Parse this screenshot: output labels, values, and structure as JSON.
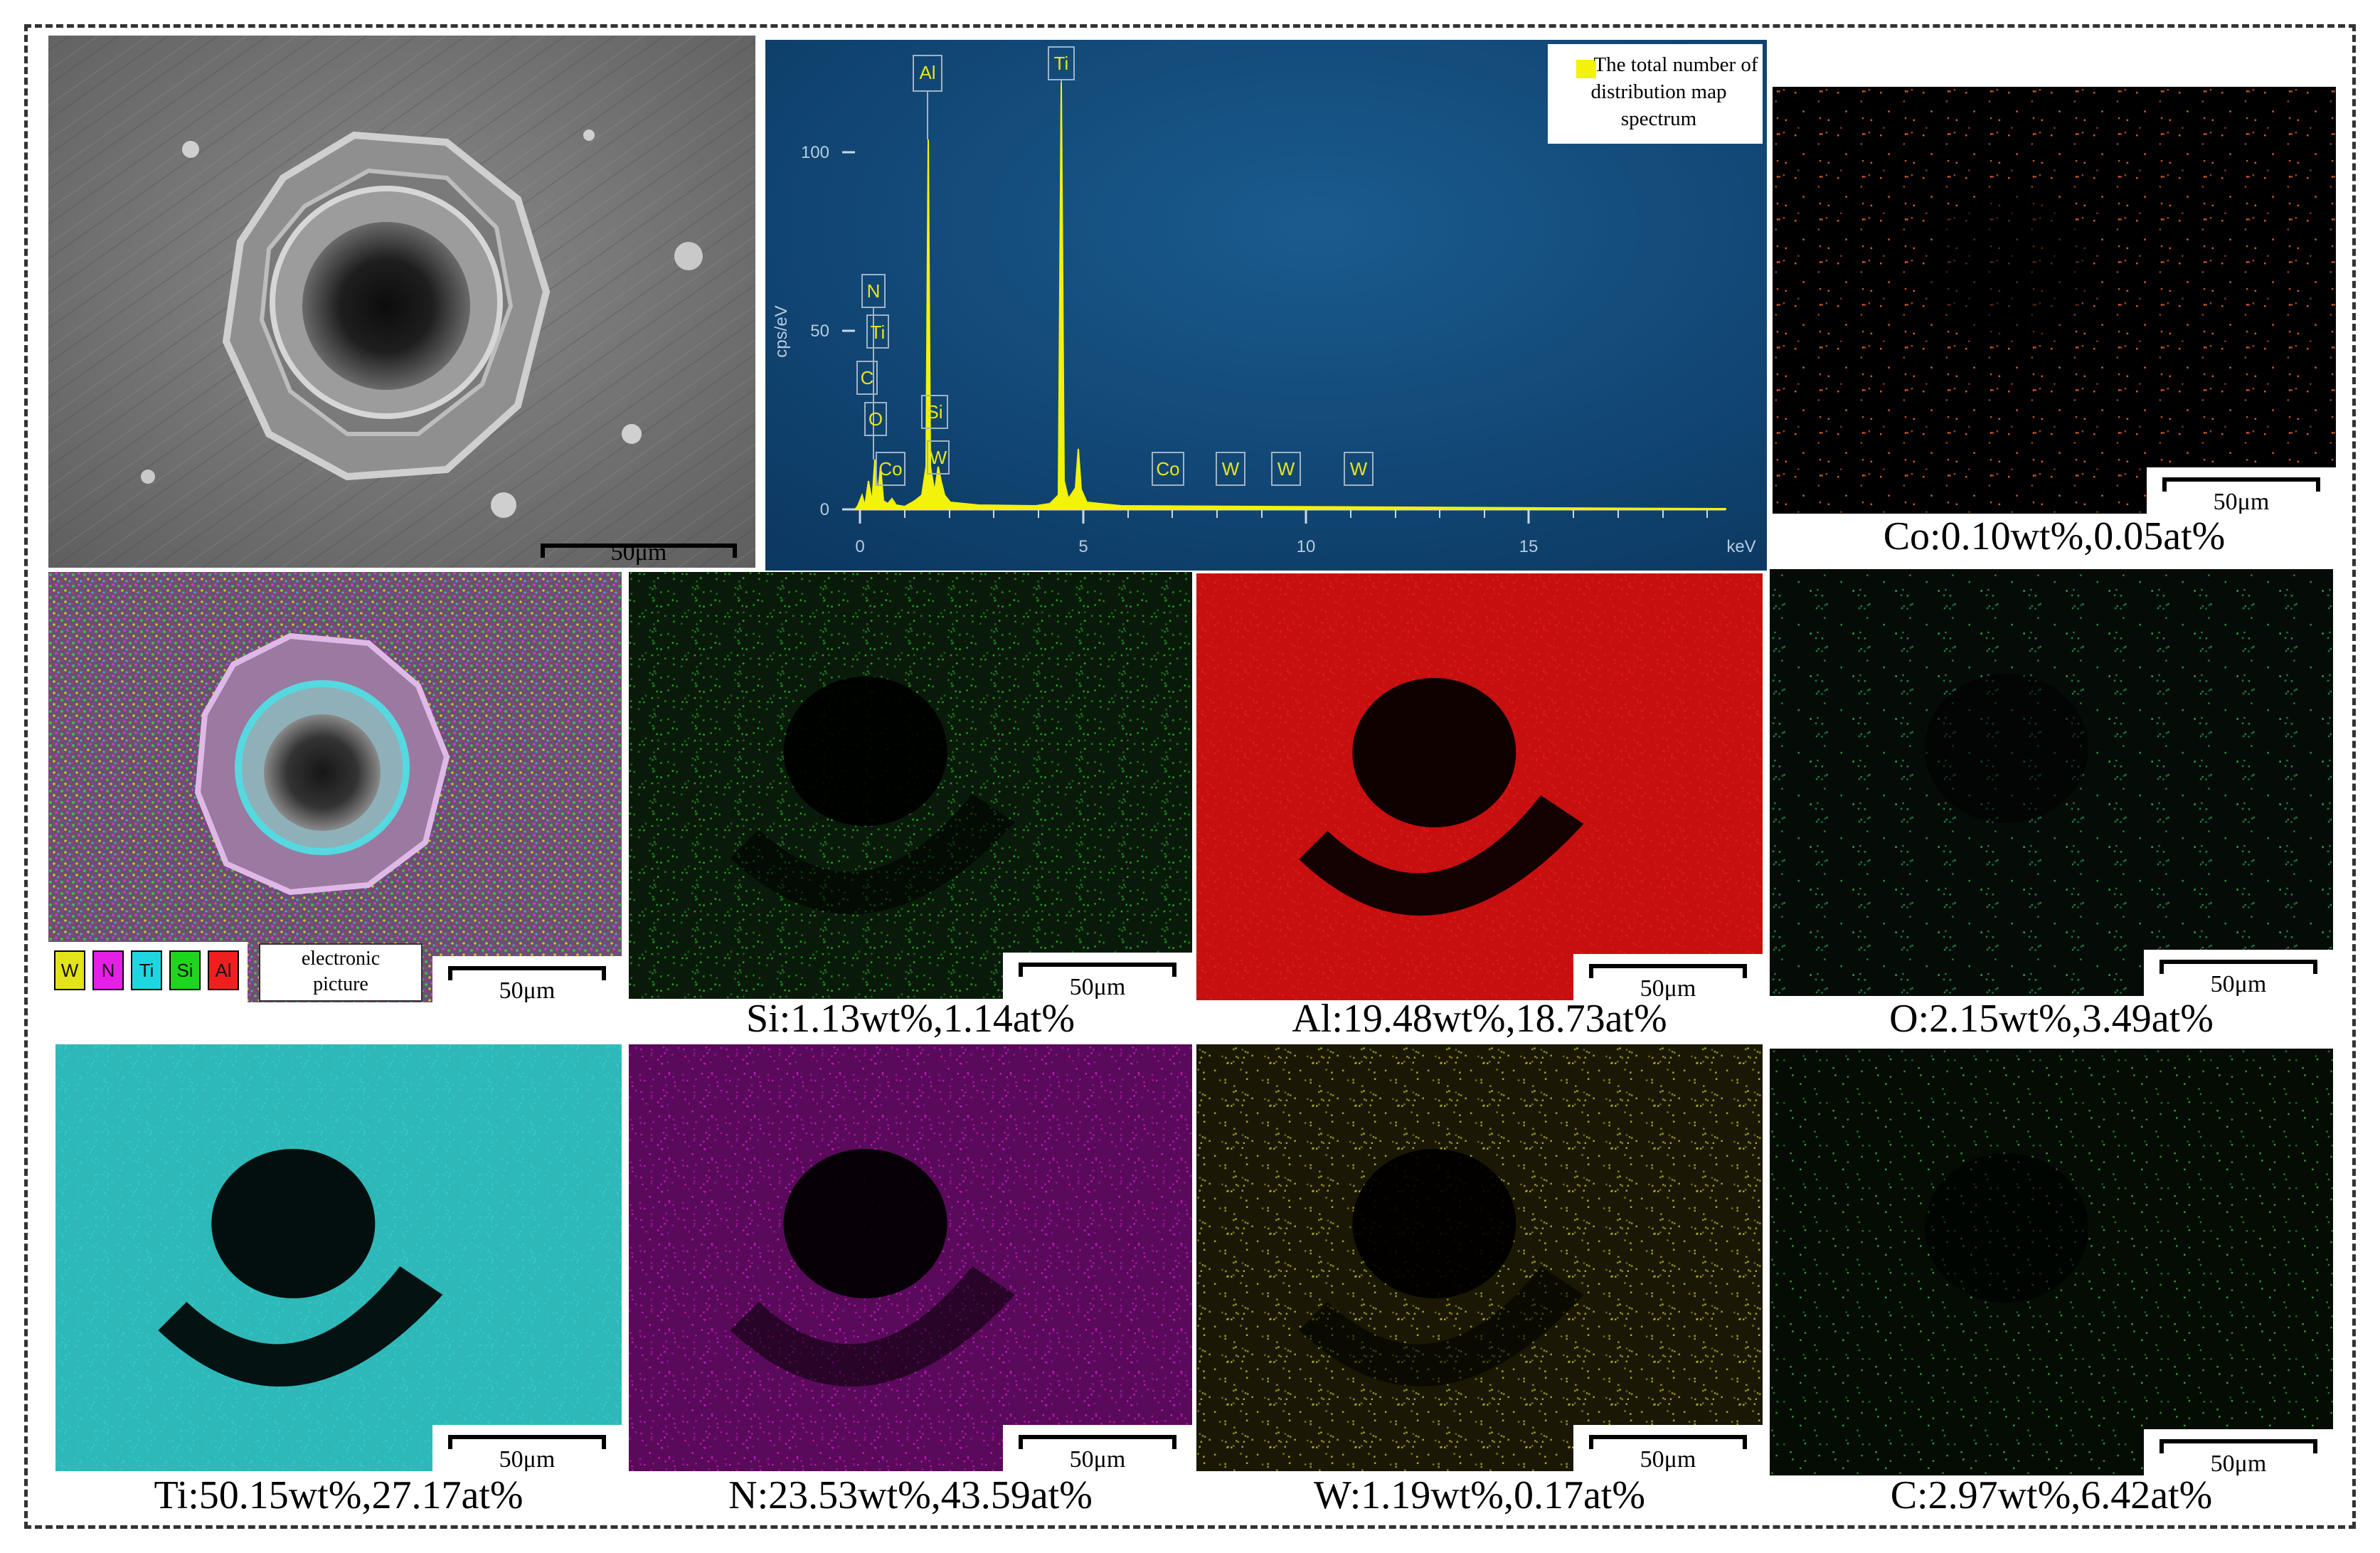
{
  "scale_bar_label": "50μm",
  "spectrum": {
    "legend_text": "The total number of distribution map spectrum",
    "y_axis_label": "cps/eV",
    "x_axis_unit": "keV",
    "y_ticks": [
      "100",
      "50",
      "0"
    ],
    "x_ticks": [
      "0",
      "5",
      "10",
      "15"
    ],
    "peak_labels": [
      "Al",
      "Ti",
      "N",
      "Ti",
      "C",
      "O",
      "Co",
      "Si",
      "W",
      "Co",
      "W",
      "W",
      "W"
    ],
    "colors": {
      "background": "#0f4270",
      "spectrum": "#f2f20a"
    }
  },
  "composite": {
    "legend": [
      {
        "symbol": "W",
        "color": "#e3e31a"
      },
      {
        "symbol": "N",
        "color": "#e61fe6"
      },
      {
        "symbol": "Ti",
        "color": "#1fd6e0"
      },
      {
        "symbol": "Si",
        "color": "#1fd61f"
      },
      {
        "symbol": "Al",
        "color": "#ef1f1f"
      }
    ],
    "label_line1": "electronic",
    "label_line2": "picture"
  },
  "maps": [
    {
      "element": "Co",
      "caption": "Co:0.10wt%,0.05at%",
      "color": "#e0602a"
    },
    {
      "element": "Si",
      "caption": "Si:1.13wt%,1.14at%",
      "color": "#21b321"
    },
    {
      "element": "Al",
      "caption": "Al:19.48wt%,18.73at%",
      "color": "#e11b1b"
    },
    {
      "element": "O",
      "caption": "O:2.15wt%,3.49at%",
      "color": "#29b35a"
    },
    {
      "element": "Ti",
      "caption": "Ti:50.15wt%,27.17at%",
      "color": "#35c8c8"
    },
    {
      "element": "N",
      "caption": "N:23.53wt%,43.59at%",
      "color": "#c41ac4"
    },
    {
      "element": "W",
      "caption": "W:1.19wt%,0.17at%",
      "color": "#b3ad20"
    },
    {
      "element": "C",
      "caption": "C:2.97wt%,6.42at%",
      "color": "#3aa33a"
    }
  ]
}
